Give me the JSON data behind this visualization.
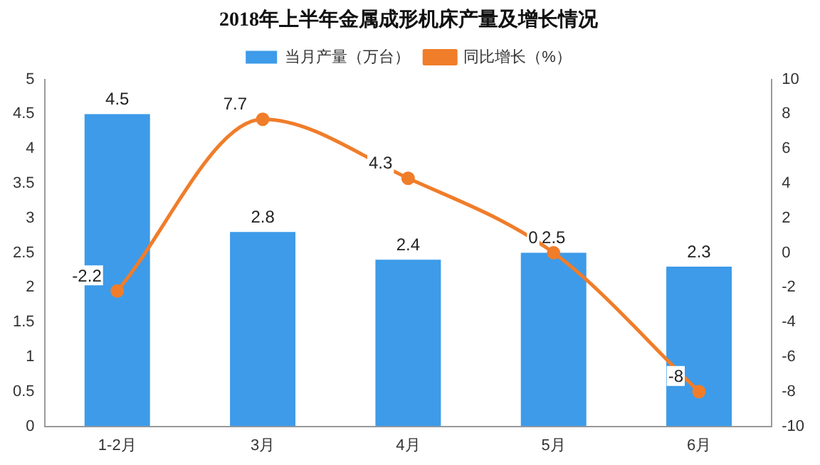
{
  "chart_data": {
    "type": "bar",
    "title": "2018年上半年金属成形机床产量及增长情况",
    "categories": [
      "1-2月",
      "3月",
      "4月",
      "5月",
      "6月"
    ],
    "series": [
      {
        "name": "当月产量（万台）",
        "color": "#3d9be9",
        "values": [
          4.5,
          2.8,
          2.4,
          2.5,
          2.3
        ]
      },
      {
        "name": "同比增长（%）",
        "type": "line",
        "axis": "y2",
        "color": "#f07d2a",
        "values": [
          -2.2,
          7.7,
          4.3,
          0,
          -8
        ]
      }
    ],
    "ylim": [
      0,
      5
    ],
    "yticks": [
      0,
      0.5,
      1,
      1.5,
      2,
      2.5,
      3,
      3.5,
      4,
      4.5,
      5
    ],
    "y2lim": [
      -10,
      10
    ],
    "y2ticks": [
      -10,
      -8,
      -6,
      -4,
      -2,
      0,
      2,
      4,
      6,
      8,
      10
    ],
    "legend": "top",
    "marker": "circle",
    "data_labels": true,
    "grid": false
  }
}
